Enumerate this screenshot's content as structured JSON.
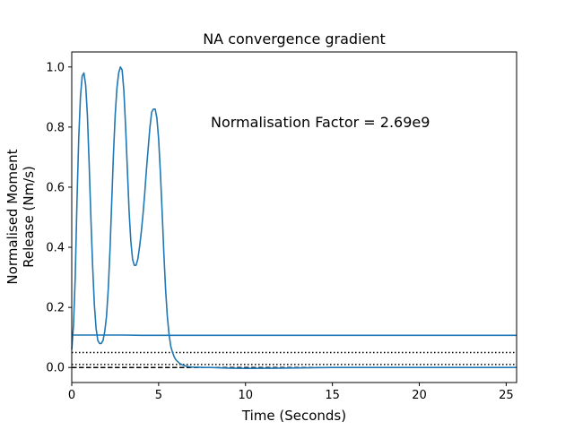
{
  "chart_data": {
    "type": "line",
    "title": "NA convergence gradient",
    "xlabel": "Time (Seconds)",
    "ylabel_lines": [
      "Normalised Moment",
      "Release (Nm/s)"
    ],
    "xlim": [
      0,
      25.6
    ],
    "ylim": [
      -0.05,
      1.05
    ],
    "xticks": [
      0,
      5,
      10,
      15,
      20,
      25
    ],
    "yticks": [
      0.0,
      0.2,
      0.4,
      0.6,
      0.8,
      1.0
    ],
    "xtick_labels": [
      "0",
      "5",
      "10",
      "15",
      "20",
      "25"
    ],
    "ytick_labels": [
      "0.0",
      "0.2",
      "0.4",
      "0.6",
      "0.8",
      "1.0"
    ],
    "grid": false,
    "annotation": {
      "text": "Normalisation Factor = 2.69e9",
      "x": 8.0,
      "y": 0.8
    },
    "series": [
      {
        "color": "#1f77b4",
        "x": [
          0.0,
          0.1,
          0.2,
          0.3,
          0.4,
          0.5,
          0.6,
          0.7,
          0.8,
          0.9,
          1.0,
          1.1,
          1.2,
          1.3,
          1.4,
          1.5,
          1.6,
          1.7,
          1.8,
          1.9,
          2.0,
          2.1,
          2.2,
          2.3,
          2.4,
          2.5,
          2.6,
          2.7,
          2.8,
          2.9,
          3.0,
          3.1,
          3.2,
          3.3,
          3.4,
          3.5,
          3.6,
          3.7,
          3.8,
          3.9,
          4.0,
          4.1,
          4.2,
          4.3,
          4.4,
          4.5,
          4.6,
          4.7,
          4.8,
          4.9,
          5.0,
          5.1,
          5.2,
          5.3,
          5.4,
          5.5,
          5.6,
          5.7,
          5.8,
          5.9,
          6.0,
          6.2,
          6.4,
          6.6,
          6.8,
          7.0,
          7.3,
          7.6,
          8.0,
          9.0,
          10.0,
          12.0,
          15.0,
          20.0,
          25.6
        ],
        "y": [
          0.06,
          0.14,
          0.3,
          0.55,
          0.76,
          0.9,
          0.97,
          0.98,
          0.94,
          0.84,
          0.68,
          0.5,
          0.34,
          0.21,
          0.13,
          0.09,
          0.08,
          0.08,
          0.09,
          0.12,
          0.17,
          0.26,
          0.39,
          0.55,
          0.71,
          0.84,
          0.93,
          0.98,
          1.0,
          0.99,
          0.92,
          0.8,
          0.66,
          0.52,
          0.42,
          0.36,
          0.34,
          0.34,
          0.36,
          0.4,
          0.45,
          0.51,
          0.58,
          0.66,
          0.73,
          0.8,
          0.85,
          0.86,
          0.86,
          0.83,
          0.76,
          0.65,
          0.52,
          0.38,
          0.26,
          0.17,
          0.11,
          0.07,
          0.05,
          0.035,
          0.025,
          0.014,
          0.008,
          0.004,
          0.002,
          0.001,
          0.001,
          0.0,
          0.0,
          -0.002,
          -0.003,
          -0.002,
          0.0,
          0.0,
          0.0
        ]
      },
      {
        "color": "#1f77b4",
        "x": [
          0.0,
          2.0,
          3.0,
          4.0,
          6.0,
          8.0,
          12.0,
          20.0,
          25.6
        ],
        "y": [
          0.108,
          0.108,
          0.108,
          0.107,
          0.107,
          0.107,
          0.107,
          0.107,
          0.107
        ]
      }
    ],
    "reference_lines": [
      {
        "y": 0.05,
        "style": "dotted",
        "color": "#000000"
      },
      {
        "y": 0.01,
        "style": "dotted",
        "color": "#000000"
      },
      {
        "y": 0.0,
        "style": "dashed",
        "color": "#000000"
      }
    ]
  }
}
